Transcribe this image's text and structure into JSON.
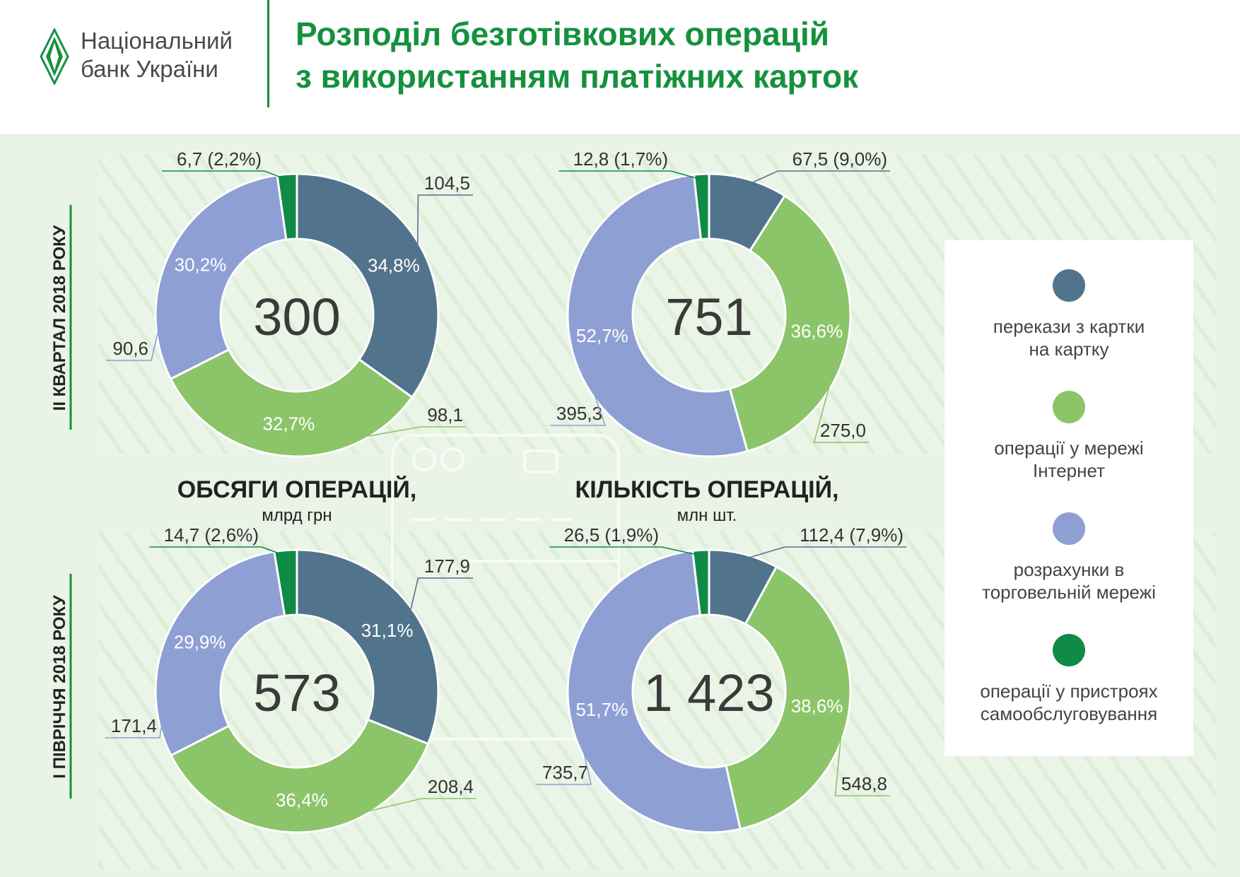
{
  "header": {
    "bank_name_line1": "Національний",
    "bank_name_line2": "банк України",
    "title_line1": "Розподіл безготівкових операцій",
    "title_line2": "з використанням платіжних карток"
  },
  "colors": {
    "card_to_card": "#52738c",
    "internet": "#8cc569",
    "retail": "#8e9fd4",
    "self_service": "#0f8a47",
    "brand_green": "#15913e",
    "background": "#e9f3e6"
  },
  "row_labels": [
    "II КВАРТАЛ 2018 РОКУ",
    "І ПІВРІЧЧЯ 2018 РОКУ"
  ],
  "column_titles": [
    {
      "title": "ОБСЯГИ ОПЕРАЦІЙ,",
      "unit": "млрд грн"
    },
    {
      "title": "КІЛЬКІСТЬ ОПЕРАЦІЙ,",
      "unit": "млн шт."
    }
  ],
  "legend": [
    {
      "label_line1": "перекази з картки",
      "label_line2": "на картку",
      "color": "#52738c"
    },
    {
      "label_line1": "операції у мережі",
      "label_line2": "Інтернет",
      "color": "#8cc569"
    },
    {
      "label_line1": "розрахунки в",
      "label_line2": "торговельній мережі",
      "color": "#8e9fd4"
    },
    {
      "label_line1": "операції у пристроях",
      "label_line2": "самообслуговування",
      "color": "#0f8a47"
    }
  ],
  "chart_data": [
    {
      "type": "pie",
      "period": "II КВАРТАЛ 2018 РОКУ",
      "measure": "ОБСЯГИ ОПЕРАЦІЙ, млрд грн",
      "total": "300",
      "slices": [
        {
          "category": "перекази з картки на картку",
          "value": 104.5,
          "value_label": "104,5",
          "pct": 34.8,
          "pct_label": "34,8%"
        },
        {
          "category": "операції у мережі Інтернет",
          "value": 98.1,
          "value_label": "98,1",
          "pct": 32.7,
          "pct_label": "32,7%"
        },
        {
          "category": "розрахунки в торговельній мережі",
          "value": 90.6,
          "value_label": "90,6",
          "pct": 30.2,
          "pct_label": "30,2%"
        },
        {
          "category": "операції у пристроях самообслуговування",
          "value": 6.7,
          "value_label": "6,7 (2,2%)",
          "pct": 2.2,
          "pct_label": ""
        }
      ]
    },
    {
      "type": "pie",
      "period": "II КВАРТАЛ 2018 РОКУ",
      "measure": "КІЛЬКІСТЬ ОПЕРАЦІЙ, млн шт.",
      "total": "751",
      "slices": [
        {
          "category": "перекази з картки на картку",
          "value": 67.5,
          "value_label": "67,5 (9,0%)",
          "pct": 9.0,
          "pct_label": ""
        },
        {
          "category": "операції у мережі Інтернет",
          "value": 275.0,
          "value_label": "275,0",
          "pct": 36.6,
          "pct_label": "36,6%"
        },
        {
          "category": "розрахунки в торговельній мережі",
          "value": 395.3,
          "value_label": "395,3",
          "pct": 52.7,
          "pct_label": "52,7%"
        },
        {
          "category": "операції у пристроях самообслуговування",
          "value": 12.8,
          "value_label": "12,8 (1,7%)",
          "pct": 1.7,
          "pct_label": ""
        }
      ]
    },
    {
      "type": "pie",
      "period": "І ПІВРІЧЧЯ 2018 РОКУ",
      "measure": "ОБСЯГИ ОПЕРАЦІЙ, млрд грн",
      "total": "573",
      "slices": [
        {
          "category": "перекази з картки на картку",
          "value": 177.9,
          "value_label": "177,9",
          "pct": 31.1,
          "pct_label": "31,1%"
        },
        {
          "category": "операції у мережі Інтернет",
          "value": 208.4,
          "value_label": "208,4",
          "pct": 36.4,
          "pct_label": "36,4%"
        },
        {
          "category": "розрахунки в торговельній мережі",
          "value": 171.4,
          "value_label": "171,4",
          "pct": 29.9,
          "pct_label": "29,9%"
        },
        {
          "category": "операції у пристроях самообслуговування",
          "value": 14.7,
          "value_label": "14,7 (2,6%)",
          "pct": 2.6,
          "pct_label": ""
        }
      ]
    },
    {
      "type": "pie",
      "period": "І ПІВРІЧЧЯ 2018 РОКУ",
      "measure": "КІЛЬКІСТЬ ОПЕРАЦІЙ, млн шт.",
      "total": "1 423",
      "slices": [
        {
          "category": "перекази з картки на картку",
          "value": 112.4,
          "value_label": "112,4 (7,9%)",
          "pct": 7.9,
          "pct_label": ""
        },
        {
          "category": "операції у мережі Інтернет",
          "value": 548.8,
          "value_label": "548,8",
          "pct": 38.6,
          "pct_label": "38,6%"
        },
        {
          "category": "розрахунки в торговельній мережі",
          "value": 735.7,
          "value_label": "735,7",
          "pct": 51.7,
          "pct_label": "51,7%"
        },
        {
          "category": "операції у пристроях самообслуговування",
          "value": 26.5,
          "value_label": "26,5 (1,9%)",
          "pct": 1.9,
          "pct_label": ""
        }
      ]
    }
  ]
}
